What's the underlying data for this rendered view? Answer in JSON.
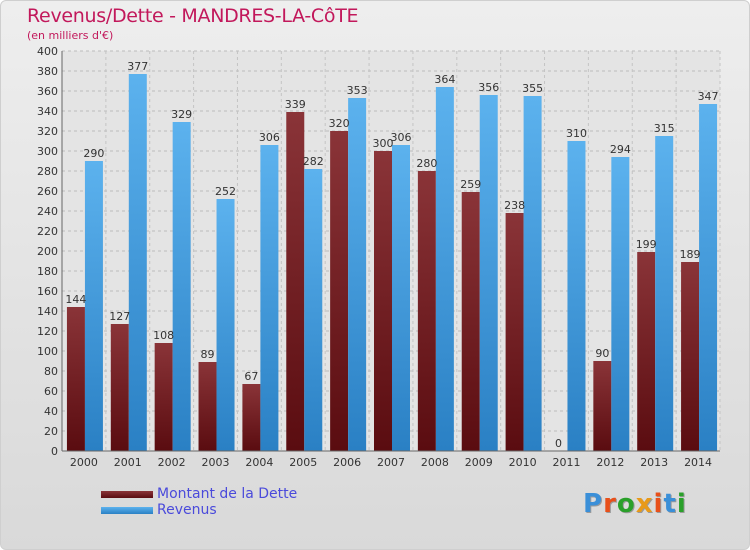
{
  "title": "Revenus/Dette - MANDRES-LA-CôTE",
  "subtitle": "(en milliers d'€)",
  "logo": {
    "text": "Proxiti",
    "colors": [
      "#3a8fd8",
      "#e8501a",
      "#2aa02a",
      "#e89a1a",
      "#e8501a",
      "#3a8fd8",
      "#2aa02a"
    ]
  },
  "chart_data": {
    "type": "bar",
    "categories": [
      "2000",
      "2001",
      "2002",
      "2003",
      "2004",
      "2005",
      "2006",
      "2007",
      "2008",
      "2009",
      "2010",
      "2011",
      "2012",
      "2013",
      "2014"
    ],
    "series": [
      {
        "name": "Montant de la Dette",
        "color": "#7a2a2e",
        "values": [
          144,
          127,
          108,
          89,
          67,
          339,
          320,
          300,
          280,
          259,
          238,
          0,
          90,
          199,
          189
        ]
      },
      {
        "name": "Revenus",
        "color": "#4aa3e6",
        "values": [
          290,
          377,
          329,
          252,
          306,
          282,
          353,
          306,
          364,
          356,
          355,
          310,
          294,
          315,
          347
        ]
      }
    ],
    "ylim": [
      0,
      400
    ],
    "yticks": [
      0,
      20,
      40,
      60,
      80,
      100,
      120,
      140,
      160,
      180,
      200,
      220,
      240,
      260,
      280,
      300,
      320,
      340,
      360,
      380,
      400
    ],
    "grid": true,
    "legend": "bottom-left"
  }
}
